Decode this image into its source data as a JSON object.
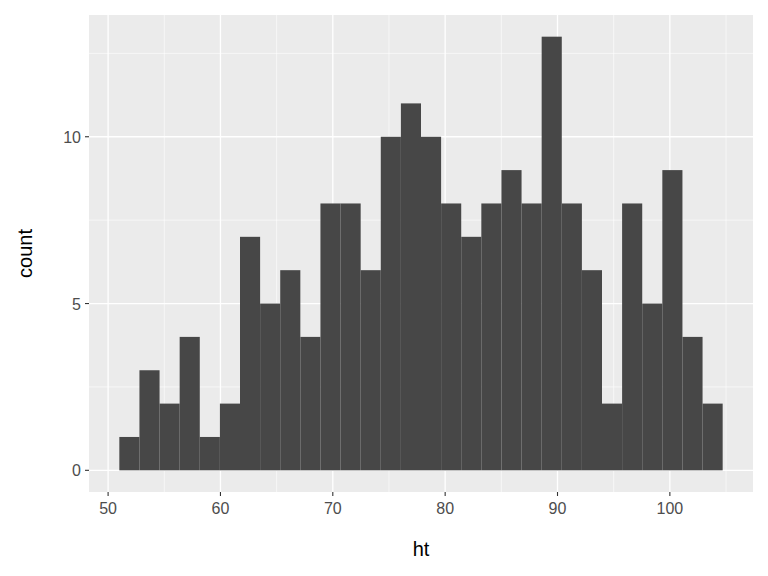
{
  "chart_data": {
    "type": "histogram",
    "x_label": "ht",
    "y_label": "count",
    "bins": [
      51.0,
      52.79,
      54.58,
      56.37,
      58.16,
      59.95,
      61.74,
      63.53,
      65.32,
      67.11,
      68.9,
      70.69,
      72.48,
      74.27,
      76.06,
      77.85,
      79.64,
      81.43,
      83.22,
      85.01,
      86.8,
      88.59,
      90.38,
      92.17,
      93.96,
      95.75,
      97.54,
      99.33,
      101.12,
      102.91,
      104.7
    ],
    "counts": [
      1,
      3,
      2,
      4,
      1,
      2,
      7,
      5,
      6,
      4,
      8,
      8,
      6,
      10,
      11,
      10,
      8,
      7,
      8,
      9,
      8,
      13,
      8,
      6,
      2,
      8,
      5,
      9,
      4,
      2
    ],
    "color": "#474747",
    "xlim": [
      48.3,
      107.4
    ],
    "ylim": [
      -0.65,
      13.65
    ],
    "xticks": [
      50,
      60,
      70,
      80,
      90,
      100
    ],
    "yticks": [
      0,
      5,
      10
    ],
    "grid": true
  }
}
